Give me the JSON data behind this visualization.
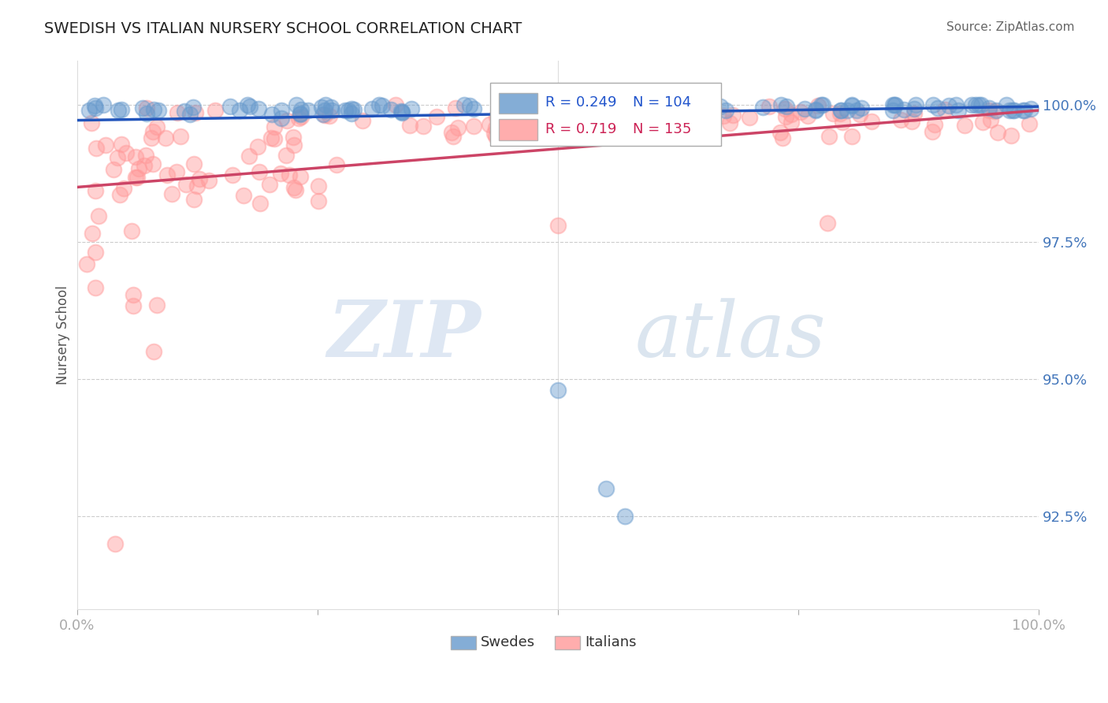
{
  "title": "SWEDISH VS ITALIAN NURSERY SCHOOL CORRELATION CHART",
  "source": "Source: ZipAtlas.com",
  "ylabel": "Nursery School",
  "ytick_labels": [
    "92.5%",
    "95.0%",
    "97.5%",
    "100.0%"
  ],
  "ytick_values": [
    0.925,
    0.95,
    0.975,
    1.0
  ],
  "xlim": [
    0.0,
    1.0
  ],
  "ylim": [
    0.908,
    1.008
  ],
  "legend_blue_r": "R = 0.249",
  "legend_blue_n": "N = 104",
  "legend_pink_r": "R = 0.719",
  "legend_pink_n": "N = 135",
  "legend_label_blue": "Swedes",
  "legend_label_pink": "Italians",
  "blue_color": "#6699CC",
  "pink_color": "#FF9999",
  "blue_line_color": "#2255BB",
  "pink_line_color": "#CC4466",
  "watermark_zip": "ZIP",
  "watermark_atlas": "atlas",
  "watermark_color_zip": "#C5D5E8",
  "watermark_color_atlas": "#BBCCE0",
  "background_color": "#FFFFFF",
  "grid_color": "#CCCCCC",
  "ytick_color": "#4477BB",
  "xtick_color": "#333333",
  "title_color": "#222222",
  "source_color": "#666666",
  "legend_text_blue": "#2255CC",
  "legend_text_pink": "#CC2255"
}
